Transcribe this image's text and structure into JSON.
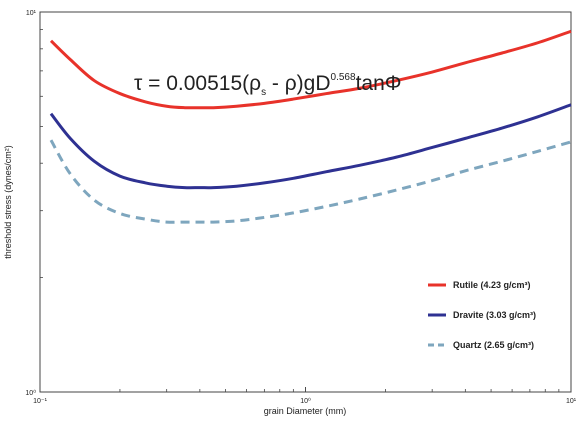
{
  "chart_data": {
    "type": "line",
    "title": "",
    "annotation": {
      "prefix": "τ = 0.00515(ρ",
      "sub": "s",
      "middle": " - ρ)gD",
      "sup": "0.568",
      "suffix": "tanΦ"
    },
    "xlabel": "grain Diameter (mm)",
    "ylabel": "threshold stress (dynes/cm²)",
    "x_scale": "log",
    "y_scale": "log",
    "xlim": [
      0.1,
      10
    ],
    "ylim": [
      1,
      10
    ],
    "x_ticks": [
      {
        "value": 0.1,
        "label": "10⁻¹"
      },
      {
        "value": 1,
        "label": "10⁰"
      },
      {
        "value": 10,
        "label": "10¹"
      }
    ],
    "y_ticks": [
      {
        "value": 1,
        "label": "10⁰"
      },
      {
        "value": 10,
        "label": "10¹"
      }
    ],
    "grid": false,
    "legend_position": "bottom-right",
    "series": [
      {
        "name": "Rutile (4.23 g/cm³)",
        "color": "#e8322a",
        "style": "solid",
        "x": [
          0.11,
          0.13,
          0.16,
          0.2,
          0.25,
          0.3,
          0.35,
          0.4,
          0.45,
          0.55,
          0.7,
          0.9,
          1.2,
          1.6,
          2.2,
          3,
          4,
          5.5,
          7.5,
          10
        ],
        "y": [
          8.4,
          7.5,
          6.6,
          6.1,
          5.8,
          5.65,
          5.6,
          5.6,
          5.6,
          5.65,
          5.75,
          5.9,
          6.1,
          6.3,
          6.6,
          6.95,
          7.35,
          7.8,
          8.3,
          8.9
        ]
      },
      {
        "name": "Dravite (3.03 g/cm³)",
        "color": "#2e3192",
        "style": "solid",
        "x": [
          0.11,
          0.13,
          0.16,
          0.2,
          0.25,
          0.3,
          0.35,
          0.4,
          0.45,
          0.55,
          0.7,
          0.9,
          1.2,
          1.6,
          2.2,
          3,
          4,
          5.5,
          7.5,
          10
        ],
        "y": [
          5.4,
          4.65,
          4.05,
          3.7,
          3.55,
          3.48,
          3.45,
          3.45,
          3.45,
          3.48,
          3.55,
          3.65,
          3.8,
          3.95,
          4.15,
          4.4,
          4.65,
          4.95,
          5.3,
          5.7
        ]
      },
      {
        "name": "Quartz (2.65 g/cm³)",
        "color": "#7ea6be",
        "style": "dashed",
        "x": [
          0.11,
          0.13,
          0.16,
          0.2,
          0.25,
          0.3,
          0.35,
          0.4,
          0.45,
          0.55,
          0.7,
          0.9,
          1.2,
          1.6,
          2.2,
          3,
          4,
          5.5,
          7.5,
          10
        ],
        "y": [
          4.6,
          3.75,
          3.2,
          2.95,
          2.85,
          2.8,
          2.8,
          2.8,
          2.8,
          2.82,
          2.88,
          2.96,
          3.08,
          3.22,
          3.4,
          3.6,
          3.82,
          4.05,
          4.3,
          4.55
        ]
      }
    ]
  }
}
